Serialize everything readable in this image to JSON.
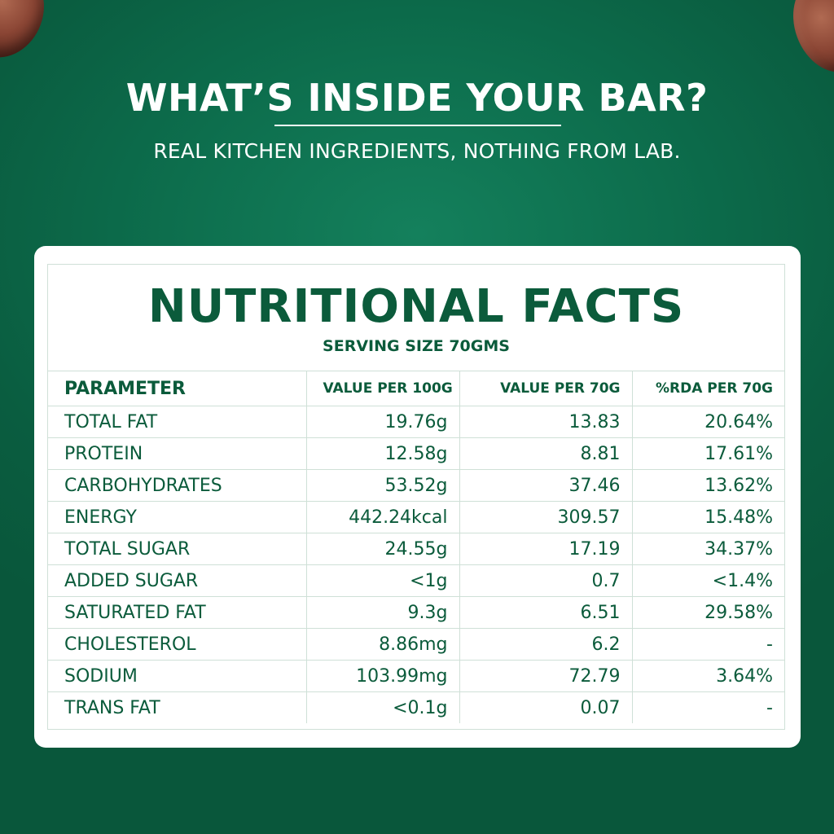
{
  "header": {
    "title": "WHAT’S INSIDE YOUR BAR?",
    "subtitle": "REAL KITCHEN INGREDIENTS, NOTHING FROM LAB."
  },
  "card": {
    "title": "NUTRITIONAL FACTS",
    "serving": "SERVING SIZE 70GMS"
  },
  "table": {
    "columns": [
      "PARAMETER",
      "VALUE PER 100G",
      "VALUE PER 70G",
      "%RDA PER 70G"
    ],
    "rows": [
      [
        "TOTAL FAT",
        "19.76g",
        "13.83",
        "20.64%"
      ],
      [
        "PROTEIN",
        "12.58g",
        "8.81",
        "17.61%"
      ],
      [
        "CARBOHYDRATES",
        "53.52g",
        "37.46",
        "13.62%"
      ],
      [
        "ENERGY",
        "442.24kcal",
        "309.57",
        "15.48%"
      ],
      [
        "TOTAL SUGAR",
        "24.55g",
        "17.19",
        "34.37%"
      ],
      [
        "ADDED SUGAR",
        "<1g",
        "0.7",
        "<1.4%"
      ],
      [
        "SATURATED FAT",
        "9.3g",
        "6.51",
        "29.58%"
      ],
      [
        "CHOLESTEROL",
        "8.86mg",
        "6.2",
        "-"
      ],
      [
        "SODIUM",
        "103.99mg",
        "72.79",
        "3.64%"
      ],
      [
        "TRANS FAT",
        "<0.1g",
        "0.07",
        "-"
      ]
    ]
  },
  "colors": {
    "background": "#0d6e4d",
    "accent_text": "#0b5b3b",
    "card": "#ffffff",
    "grid": "#cfe0d7"
  },
  "decor": {
    "corner_images": [
      "almond-nut",
      "almond-nut"
    ]
  }
}
